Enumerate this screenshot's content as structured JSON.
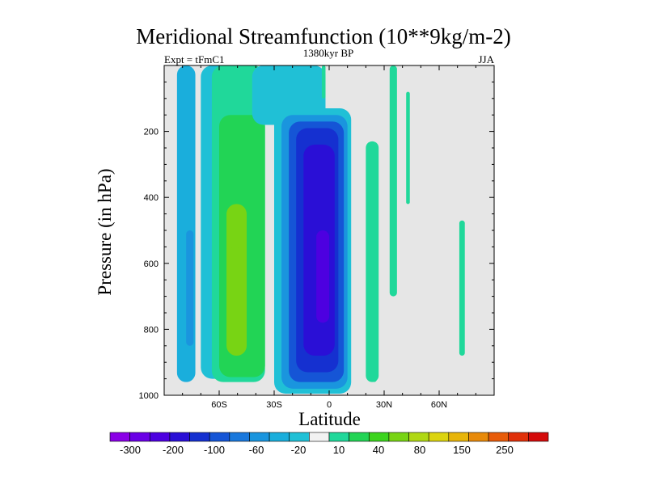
{
  "chart_data": {
    "type": "heatmap",
    "title": "Meridional Streamfunction (10**9kg/m-2)",
    "subtitle_left": "Expt = tFmC1",
    "subtitle_center": "1380kyr BP",
    "subtitle_right": "JJA",
    "xlabel": "Latitude",
    "ylabel": "Pressure (in hPa)",
    "xlim": [
      -90,
      90
    ],
    "ylim": [
      0,
      1000
    ],
    "y_inverted": true,
    "x_ticks": [
      -60,
      -30,
      0,
      30,
      60
    ],
    "x_tick_labels": [
      "60S",
      "30S",
      "0",
      "30N",
      "60N"
    ],
    "y_ticks": [
      200,
      400,
      600,
      800,
      1000
    ],
    "y_tick_labels": [
      "200",
      "400",
      "600",
      "800",
      "1000"
    ],
    "background_color": "#e6e6e6",
    "colorbar": {
      "colors": [
        "#8a00e6",
        "#6a00e6",
        "#4d00e0",
        "#2a0fd6",
        "#1530d0",
        "#1555d6",
        "#1a78dc",
        "#1a95de",
        "#1aaedc",
        "#20c0d6",
        "#f2f2f2",
        "#20d89a",
        "#22d455",
        "#3cd41e",
        "#78d414",
        "#b0d814",
        "#dcd40f",
        "#e8b50a",
        "#e88a0a",
        "#e85c0a",
        "#e0300a",
        "#d40a0a"
      ],
      "labels": [
        "-300",
        "-200",
        "-100",
        "-60",
        "-20",
        "10",
        "40",
        "80",
        "150",
        "250"
      ]
    },
    "cells": [
      {
        "lon_min": -83,
        "lon_max": -73,
        "p_top": 0,
        "p_bottom": 960,
        "value": -40
      },
      {
        "lon_min": -78,
        "lon_max": -74,
        "p_top": 500,
        "p_bottom": 850,
        "value": -60
      },
      {
        "lon_min": -70,
        "lon_max": -54,
        "p_top": 0,
        "p_bottom": 950,
        "value": -20
      },
      {
        "lon_min": -64,
        "lon_max": -35,
        "p_top": 0,
        "p_bottom": 960,
        "value": 10
      },
      {
        "lon_min": -60,
        "lon_max": -35,
        "p_top": 150,
        "p_bottom": 945,
        "value": 20
      },
      {
        "lon_min": -56,
        "lon_max": -45,
        "p_top": 420,
        "p_bottom": 880,
        "value": 40
      },
      {
        "lon_min": -55,
        "lon_max": -48,
        "p_top": 550,
        "p_bottom": 840,
        "value": 45
      },
      {
        "lon_min": -42,
        "lon_max": -2,
        "p_top": 0,
        "p_bottom": 180,
        "value": -10
      },
      {
        "lon_min": -30,
        "lon_max": 12,
        "p_top": 130,
        "p_bottom": 995,
        "value": -20
      },
      {
        "lon_min": -26,
        "lon_max": 10,
        "p_top": 150,
        "p_bottom": 980,
        "value": -60
      },
      {
        "lon_min": -22,
        "lon_max": 8,
        "p_top": 170,
        "p_bottom": 960,
        "value": -100
      },
      {
        "lon_min": -18,
        "lon_max": 5,
        "p_top": 190,
        "p_bottom": 930,
        "value": -150
      },
      {
        "lon_min": -14,
        "lon_max": 3,
        "p_top": 240,
        "p_bottom": 880,
        "value": -200
      },
      {
        "lon_min": -7,
        "lon_max": 0,
        "p_top": 500,
        "p_bottom": 780,
        "value": -250
      },
      {
        "lon_min": -4,
        "lon_max": -2,
        "p_top": 0,
        "p_bottom": 100,
        "value": 10
      },
      {
        "lon_min": 20,
        "lon_max": 27,
        "p_top": 230,
        "p_bottom": 960,
        "value": 10
      },
      {
        "lon_min": 23,
        "lon_max": 26,
        "p_top": 700,
        "p_bottom": 960,
        "value": 15
      },
      {
        "lon_min": 33,
        "lon_max": 37,
        "p_top": 0,
        "p_bottom": 700,
        "value": 10
      },
      {
        "lon_min": 42,
        "lon_max": 44,
        "p_top": 80,
        "p_bottom": 420,
        "value": 10
      },
      {
        "lon_min": 71,
        "lon_max": 74,
        "p_top": 470,
        "p_bottom": 880,
        "value": 10
      }
    ]
  }
}
